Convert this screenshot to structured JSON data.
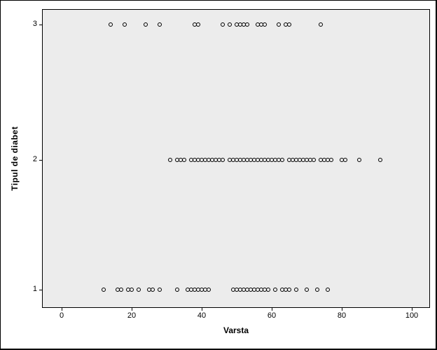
{
  "figure": {
    "background_color": "#ffffff",
    "plot_background_color": "#ececec",
    "marker_color": "#000000",
    "border_color": "#000000"
  },
  "chart_data": {
    "type": "scatter",
    "title": "",
    "xlabel": "Varsta",
    "ylabel": "Tipul de diabet",
    "marker": "open-circle",
    "legend": "none",
    "grid": false,
    "xlim": [
      -5.5,
      105
    ],
    "ylim_categories": [
      1,
      3
    ],
    "x_ticks": [
      0,
      20,
      40,
      60,
      80,
      100
    ],
    "y_ticks": [
      1,
      2,
      3
    ],
    "series": [
      {
        "name": "tipul-3",
        "tipul": 3,
        "ages": [
          14,
          18,
          24,
          28,
          38,
          39,
          46,
          48,
          50,
          51,
          52,
          53,
          56,
          57,
          58,
          62,
          64,
          65,
          74
        ]
      },
      {
        "name": "tipul-2",
        "tipul": 2,
        "ages": [
          31,
          33,
          34,
          35,
          37,
          38,
          39,
          40,
          41,
          42,
          43,
          44,
          45,
          46,
          48,
          49,
          50,
          51,
          52,
          53,
          54,
          55,
          56,
          57,
          58,
          59,
          60,
          61,
          62,
          63,
          65,
          66,
          67,
          68,
          69,
          70,
          71,
          72,
          74,
          75,
          76,
          77,
          80,
          81,
          85,
          91
        ]
      },
      {
        "name": "tipul-1",
        "tipul": 1,
        "ages": [
          12,
          16,
          17,
          19,
          20,
          22,
          25,
          26,
          28,
          33,
          36,
          37,
          38,
          39,
          40,
          41,
          42,
          49,
          50,
          51,
          52,
          53,
          54,
          55,
          56,
          57,
          58,
          59,
          61,
          63,
          64,
          65,
          67,
          70,
          73,
          76
        ]
      }
    ]
  }
}
